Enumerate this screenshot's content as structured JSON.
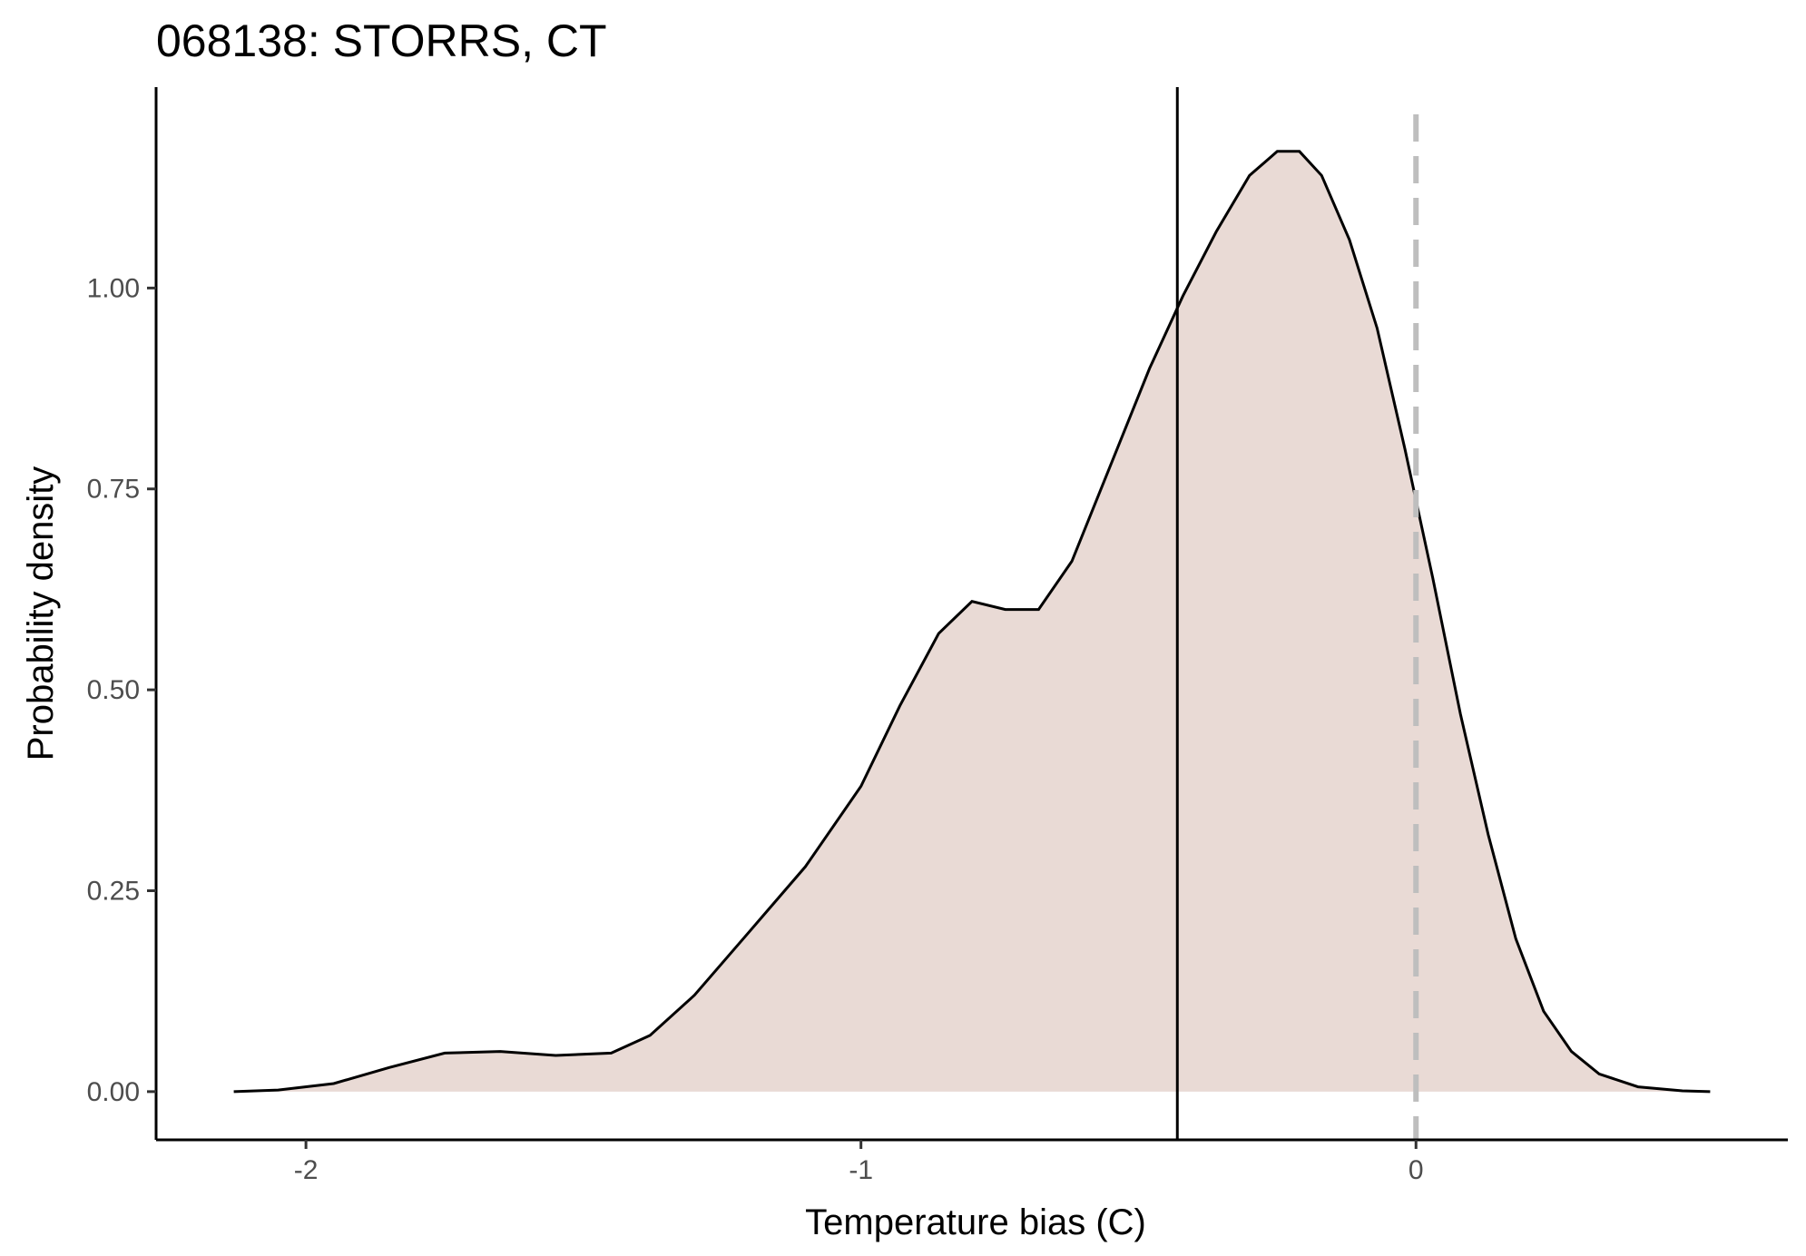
{
  "chart_data": {
    "type": "area",
    "title": "068138: STORRS, CT",
    "xlabel": "Temperature bias (C)",
    "ylabel": "Probability density",
    "xlim": [
      -2.27,
      0.67
    ],
    "ylim": [
      -0.06,
      1.25
    ],
    "x_ticks": [
      {
        "value": -2,
        "label": "-2"
      },
      {
        "value": -1,
        "label": "-1"
      },
      {
        "value": 0,
        "label": "0"
      }
    ],
    "y_ticks": [
      {
        "value": 0,
        "label": "0.00"
      },
      {
        "value": 0.25,
        "label": "0.25"
      },
      {
        "value": 0.5,
        "label": "0.50"
      },
      {
        "value": 0.75,
        "label": "0.75"
      },
      {
        "value": 1.0,
        "label": "1.00"
      }
    ],
    "grid": false,
    "legend": "none",
    "fill_color": "#e9dad5",
    "line_color": "#000000",
    "density": {
      "x": [
        -2.13,
        -2.05,
        -1.95,
        -1.85,
        -1.75,
        -1.65,
        -1.55,
        -1.45,
        -1.38,
        -1.3,
        -1.2,
        -1.1,
        -1.0,
        -0.93,
        -0.86,
        -0.8,
        -0.74,
        -0.68,
        -0.62,
        -0.55,
        -0.48,
        -0.42,
        -0.36,
        -0.3,
        -0.25,
        -0.21,
        -0.17,
        -0.12,
        -0.07,
        -0.02,
        0.03,
        0.08,
        0.13,
        0.18,
        0.23,
        0.28,
        0.33,
        0.4,
        0.48,
        0.53
      ],
      "y": [
        0.0,
        0.002,
        0.01,
        0.03,
        0.048,
        0.05,
        0.045,
        0.048,
        0.07,
        0.12,
        0.2,
        0.28,
        0.38,
        0.48,
        0.57,
        0.61,
        0.6,
        0.6,
        0.66,
        0.78,
        0.9,
        0.99,
        1.07,
        1.14,
        1.17,
        1.17,
        1.14,
        1.06,
        0.95,
        0.8,
        0.64,
        0.47,
        0.32,
        0.19,
        0.1,
        0.05,
        0.022,
        0.006,
        0.001,
        0.0
      ]
    },
    "reference_lines": [
      {
        "x": -0.43,
        "style": "solid",
        "color": "#000000"
      },
      {
        "x": 0,
        "style": "dashed",
        "color": "#bebebe"
      }
    ]
  }
}
